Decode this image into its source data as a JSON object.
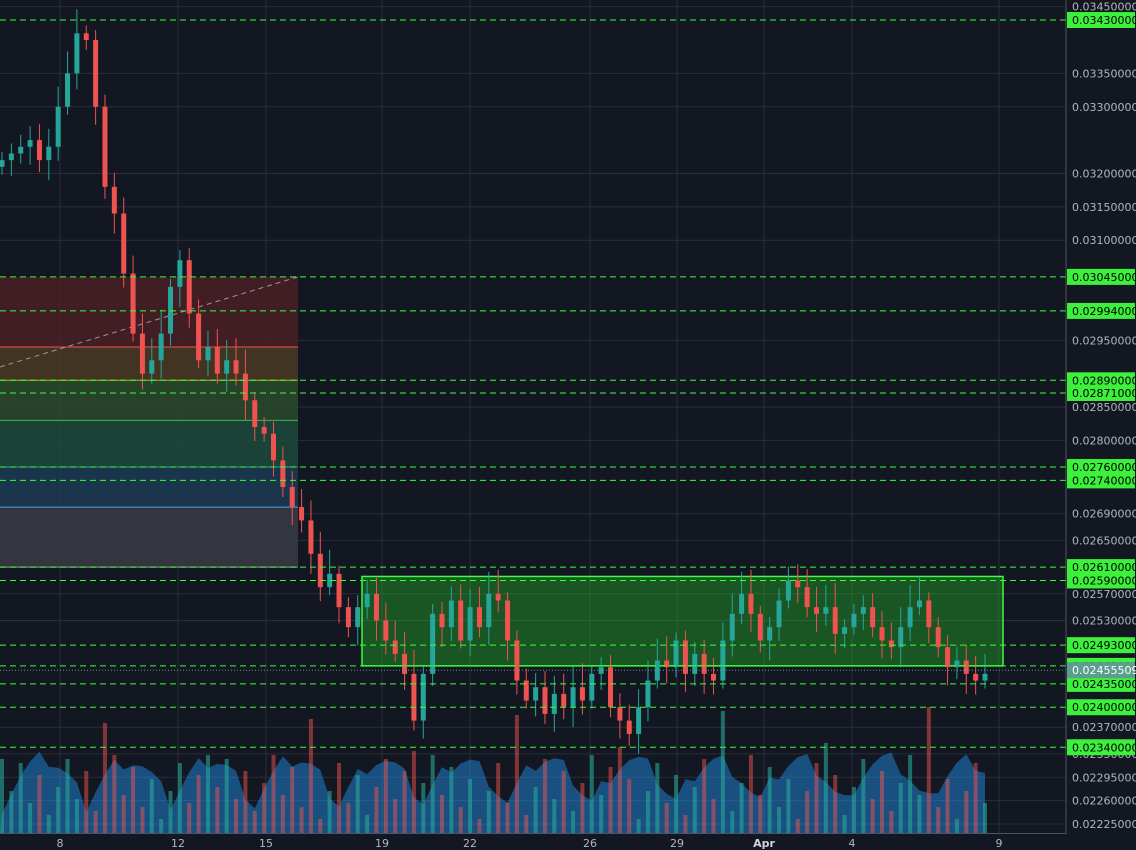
{
  "chart_data": {
    "type": "candlestick",
    "price_scale": {
      "range": [
        0.0221,
        0.0346
      ],
      "ticks": [
        "0.03450000",
        "0.03350000",
        "0.03300000",
        "0.03200000",
        "0.03150000",
        "0.03100000",
        "0.02950000",
        "0.02850000",
        "0.02800000",
        "0.02690000",
        "0.02650000",
        "0.02570000",
        "0.02530000",
        "0.02370000",
        "0.02330000",
        "0.02295000",
        "0.02260000",
        "0.02225000"
      ]
    },
    "x_axis": {
      "labels": [
        "8",
        "12",
        "15",
        "19",
        "22",
        "26",
        "29",
        "Apr",
        "4",
        "9"
      ]
    },
    "horizontal_levels": [
      "0.03430000",
      "0.03045000",
      "0.02994000",
      "0.02890000",
      "0.02871000",
      "0.02760000",
      "0.02740000",
      "0.02610000",
      "0.02590000",
      "0.02493000",
      "0.02462000",
      "0.02435000",
      "0.02400000",
      "0.02340000"
    ],
    "current_price": "0.02455509",
    "colors": {
      "up": "#26a69a",
      "down": "#ef5350",
      "level": "#39ff39",
      "tag_bg": "#3cf03c",
      "current_tag_bg": "#5b9e8e",
      "range_box": "#3aff3a",
      "background": "#131722",
      "grid": "#2a2e39"
    },
    "candles_close_path": [
      0.0322,
      0.0323,
      0.0324,
      0.0325,
      0.0322,
      0.0324,
      0.033,
      0.0335,
      0.0341,
      0.034,
      0.033,
      0.0318,
      0.0314,
      0.0305,
      0.0296,
      0.029,
      0.0292,
      0.0296,
      0.0303,
      0.0307,
      0.0299,
      0.0292,
      0.0294,
      0.029,
      0.0292,
      0.029,
      0.0286,
      0.0282,
      0.0281,
      0.0277,
      0.0273,
      0.027,
      0.0268,
      0.0263,
      0.0258,
      0.026,
      0.0255,
      0.0252,
      0.0255,
      0.0257,
      0.0253,
      0.025,
      0.0248,
      0.0245,
      0.0238,
      0.0245,
      0.0254,
      0.0252,
      0.0256,
      0.025,
      0.0255,
      0.0252,
      0.0257,
      0.0256,
      0.025,
      0.0244,
      0.0241,
      0.0243,
      0.0239,
      0.0242,
      0.024,
      0.0243,
      0.0241,
      0.0245,
      0.0246,
      0.024,
      0.0238,
      0.0236,
      0.024,
      0.0244,
      0.0247,
      0.0246,
      0.025,
      0.0245,
      0.0248,
      0.0245,
      0.0244,
      0.025,
      0.0254,
      0.0257,
      0.0254,
      0.025,
      0.0252,
      0.0256,
      0.0259,
      0.0258,
      0.0255,
      0.0254,
      0.0255,
      0.0251,
      0.0252,
      0.0254,
      0.0255,
      0.0252,
      0.025,
      0.0249,
      0.0252,
      0.0255,
      0.0256,
      0.0252,
      0.0249,
      0.0246,
      0.0247,
      0.0245,
      0.0244,
      0.0245
    ]
  }
}
